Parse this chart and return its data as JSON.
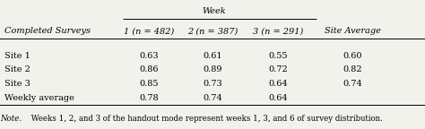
{
  "title": "Week",
  "row_header": "Completed Surveys",
  "columns": [
    "1 (n = 482)",
    "2 (n = 387)",
    "3 (n = 291)",
    "Site Average"
  ],
  "rows": [
    {
      "label": "Site 1",
      "values": [
        "0.63",
        "0.61",
        "0.55",
        "0.60"
      ]
    },
    {
      "label": "Site 2",
      "values": [
        "0.86",
        "0.89",
        "0.72",
        "0.82"
      ]
    },
    {
      "label": "Site 3",
      "values": [
        "0.85",
        "0.73",
        "0.64",
        "0.74"
      ]
    },
    {
      "label": "Weekly average",
      "values": [
        "0.78",
        "0.74",
        "0.64",
        ""
      ]
    }
  ],
  "note_italic": "Note.",
  "note_rest": " Weeks 1, 2, and 3 of the handout mode represent weeks 1, 3, and 6 of survey distribution.",
  "bg_color": "#f2f2ed",
  "figsize": [
    4.74,
    1.44
  ],
  "dpi": 100,
  "fs_main": 7.0,
  "fs_note": 6.2
}
